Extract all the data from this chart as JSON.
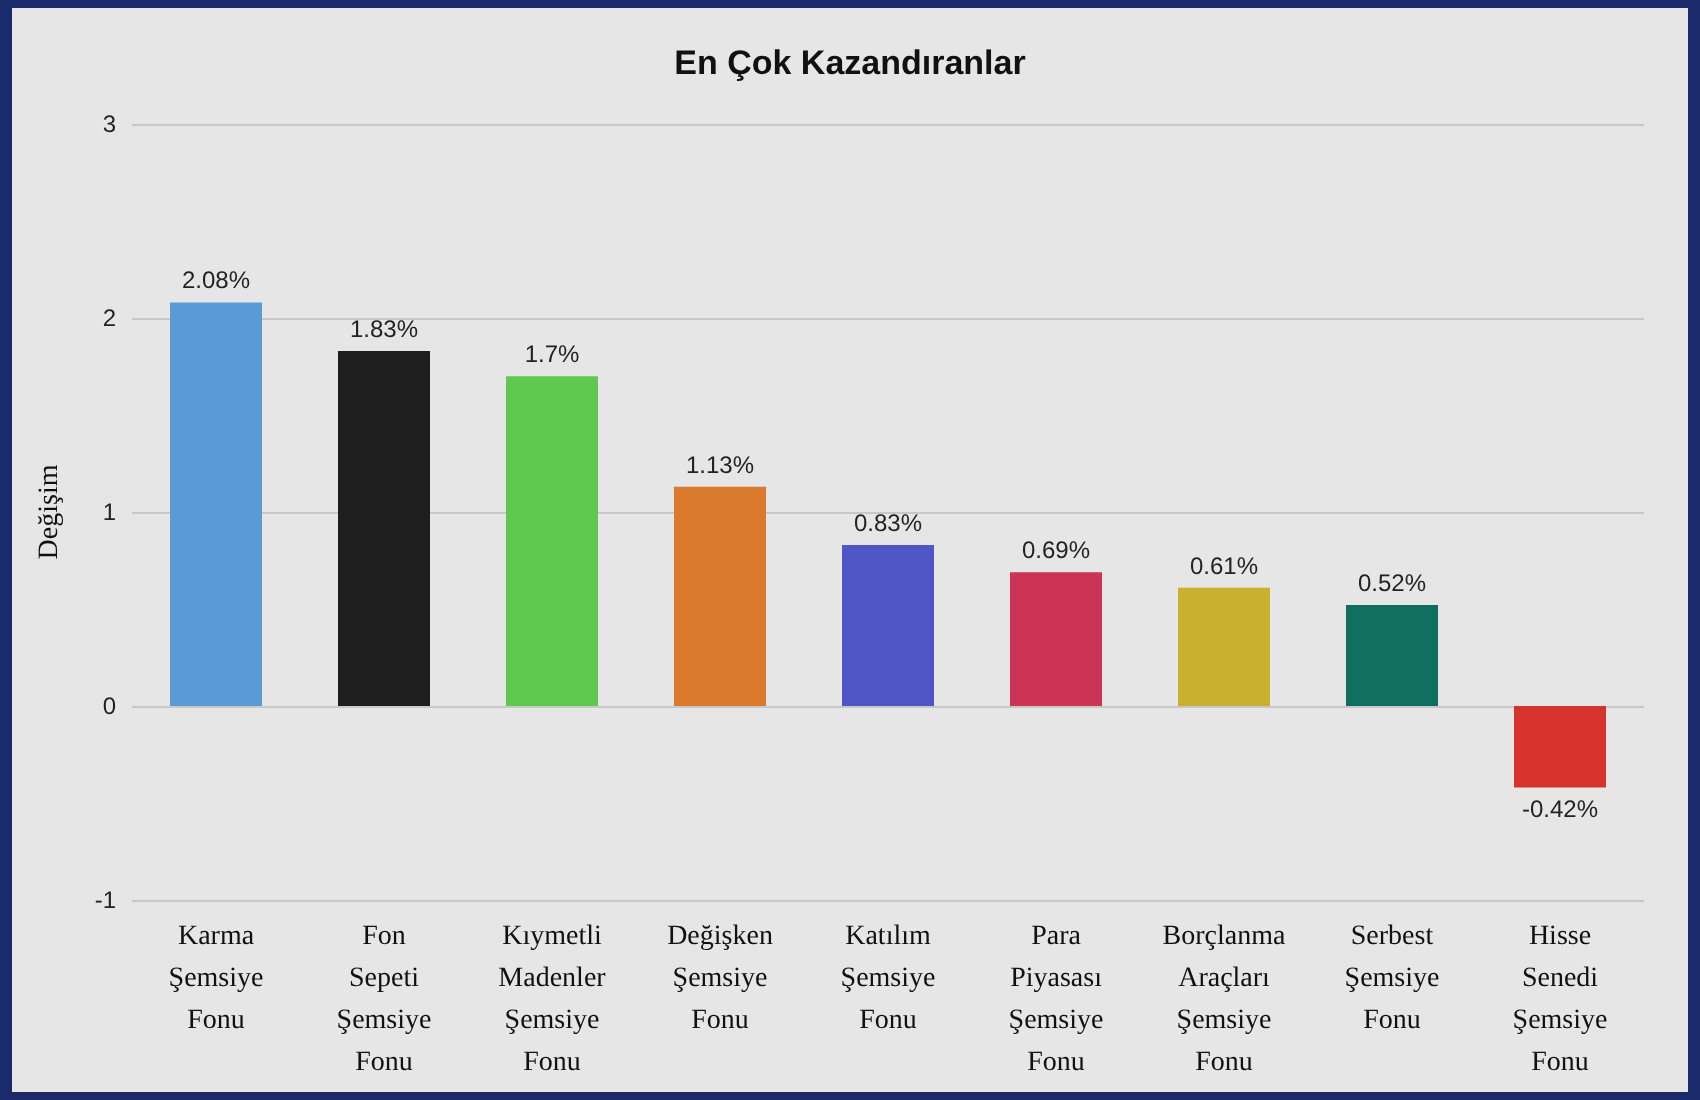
{
  "chart_data": {
    "type": "bar",
    "title": "En Çok Kazandıranlar",
    "ylabel": "Değişim",
    "categories": [
      "Karma\nŞemsiye\nFonu",
      "Fon\nSepeti\nŞemsiye\nFonu",
      "Kıymetli\nMadenler\nŞemsiye\nFonu",
      "Değişken\nŞemsiye\nFonu",
      "Katılım\nŞemsiye\nFonu",
      "Para\nPiyasası\nŞemsiye\nFonu",
      "Borçlanma\nAraçları\nŞemsiye\nFonu",
      "Serbest\nŞemsiye\nFonu",
      "Hisse\nSenedi\nŞemsiye\nFonu"
    ],
    "values": [
      2.08,
      1.83,
      1.7,
      1.13,
      0.83,
      0.69,
      0.61,
      0.52,
      -0.42
    ],
    "value_labels": [
      "2.08%",
      "1.83%",
      "1.7%",
      "1.13%",
      "0.83%",
      "0.69%",
      "0.61%",
      "0.52%",
      "-0.42%"
    ],
    "colors": [
      "#5b9bd5",
      "#1e1e1e",
      "#5ec94e",
      "#d97a2e",
      "#4f55c4",
      "#cc3355",
      "#c9b02e",
      "#0f7060",
      "#d8322c"
    ],
    "ylim": [
      -1,
      3
    ],
    "yticks": [
      -1,
      0,
      1,
      2,
      3
    ],
    "grid": "y"
  }
}
